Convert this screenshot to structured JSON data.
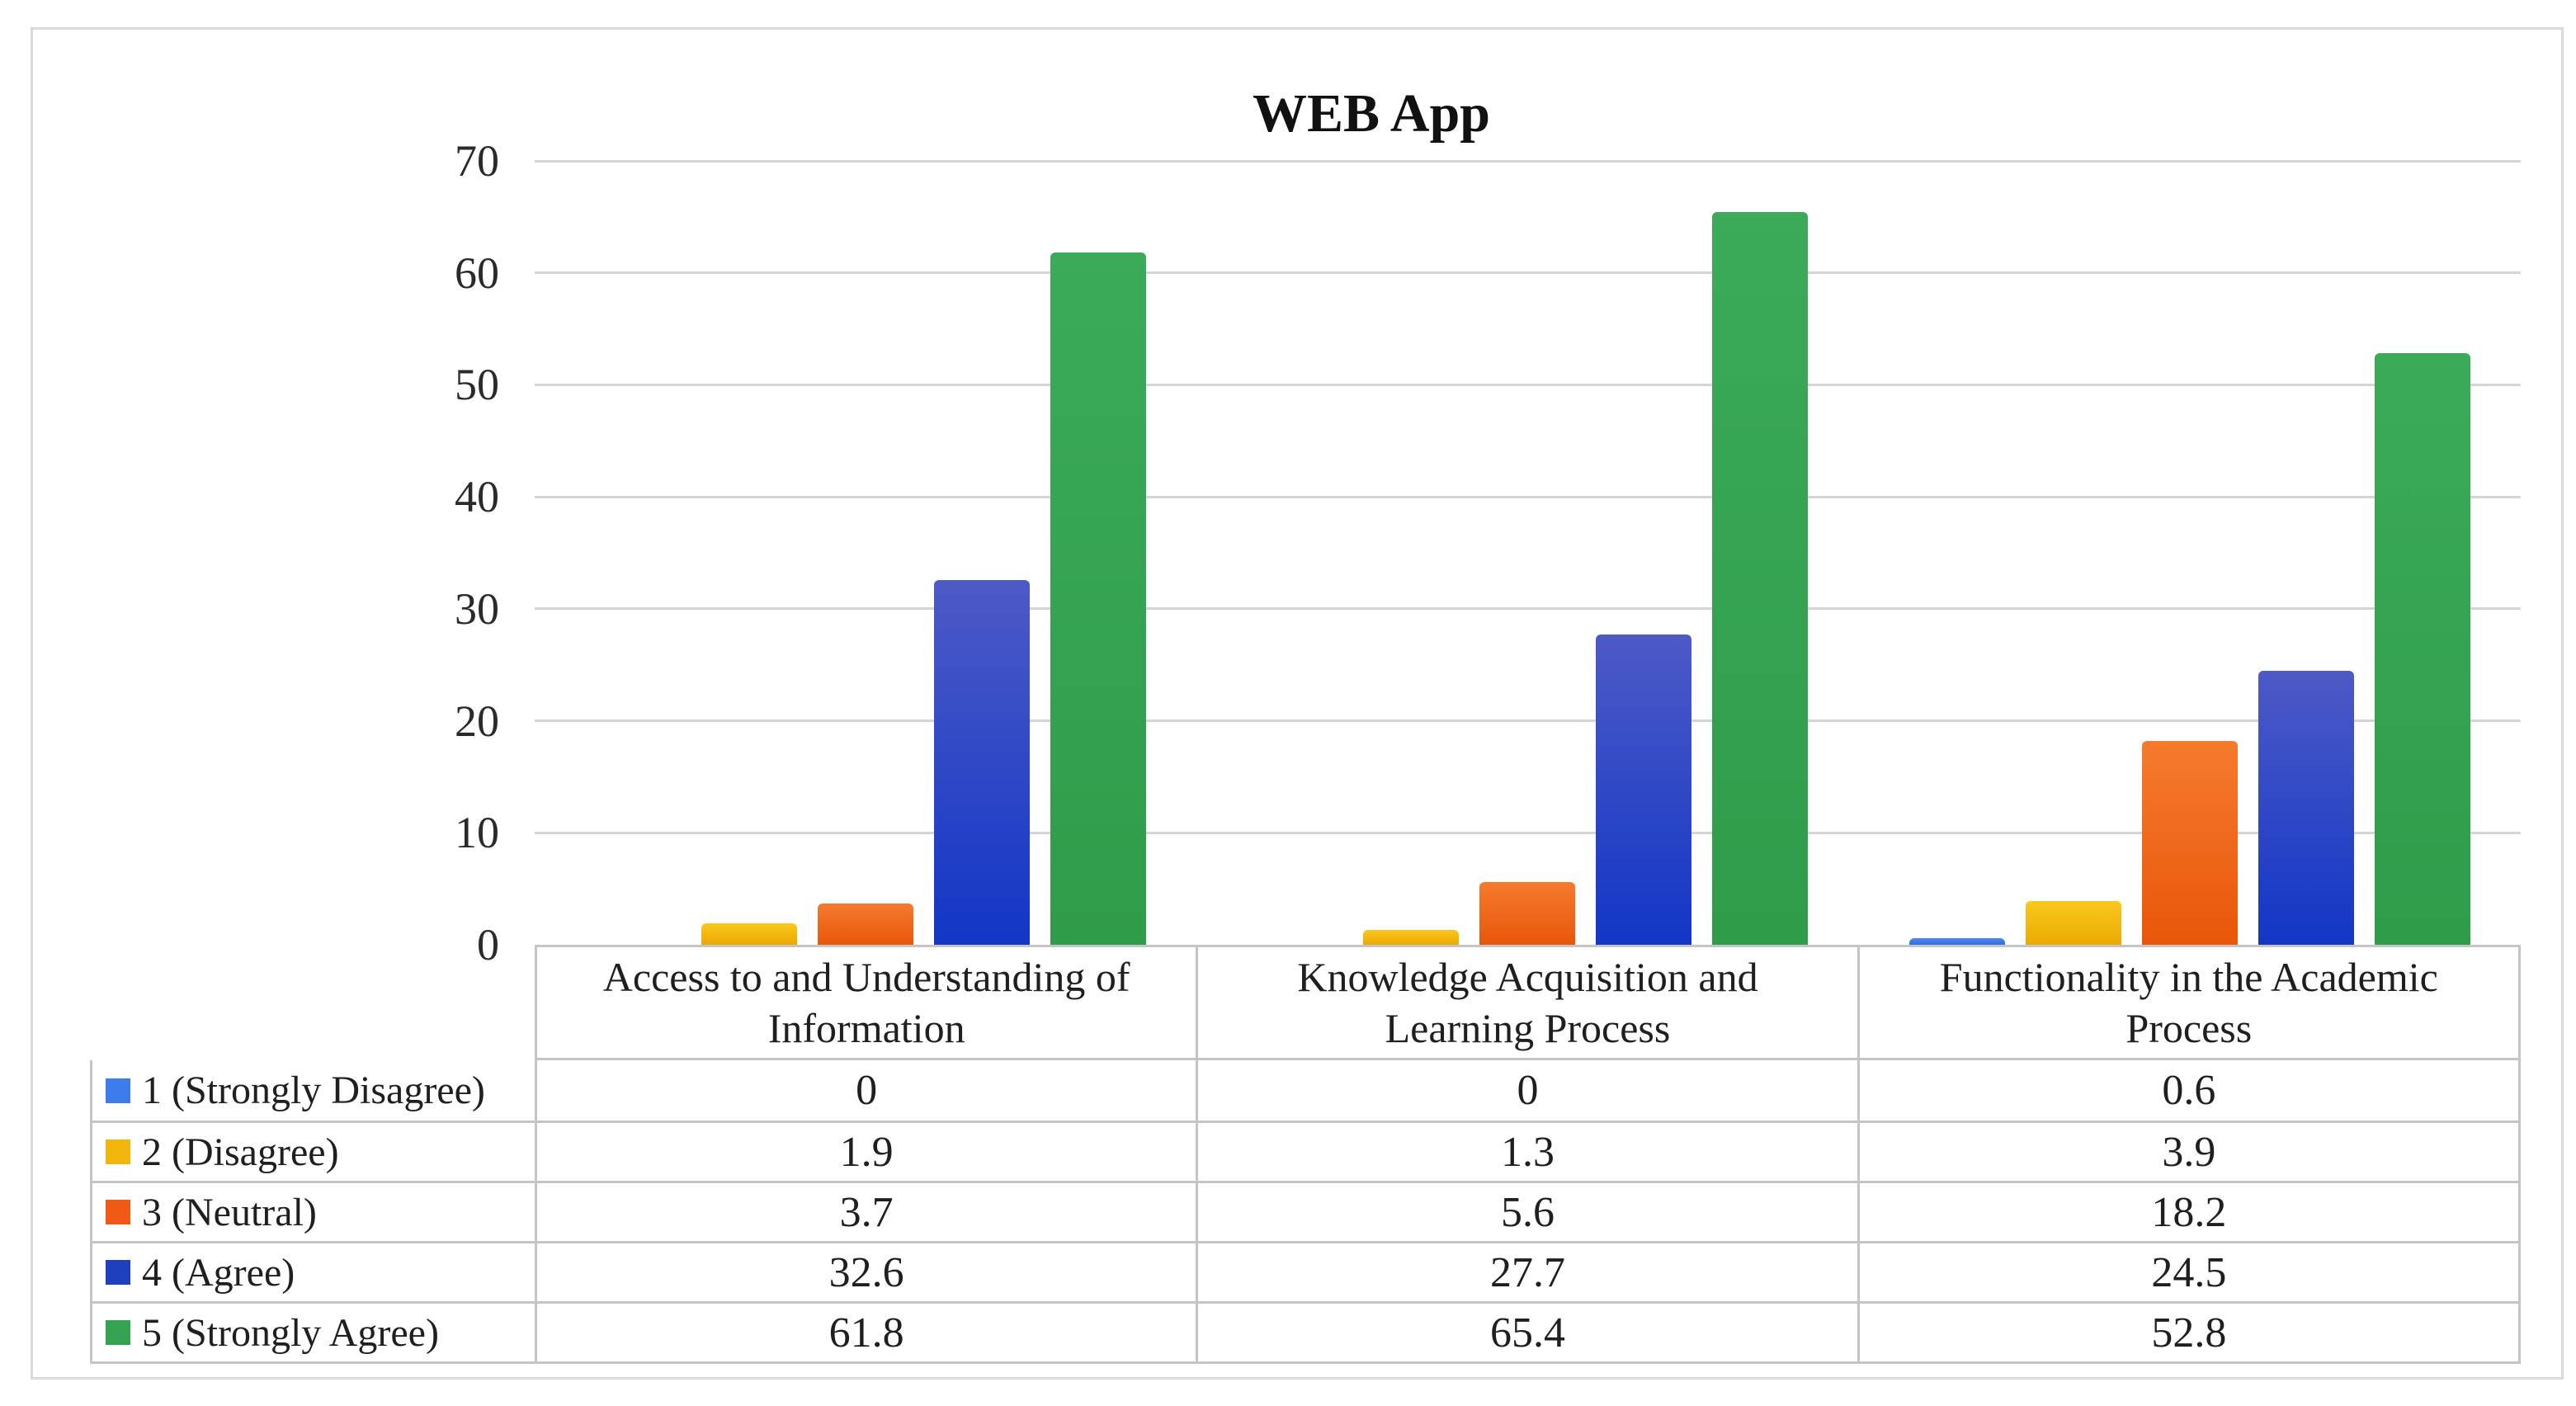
{
  "chart": {
    "title": "WEB App"
  },
  "chart_data": {
    "type": "bar",
    "title": "WEB App",
    "categories": [
      "Access to and Understanding of Information",
      "Knowledge Acquisition and Learning Process",
      "Functionality in the Academic Process"
    ],
    "series": [
      {
        "name": "1 (Strongly Disagree)",
        "color": "#3d7cec",
        "fill_top": "#4f87f0",
        "fill_bottom": "#2e6fe4",
        "values": [
          0,
          0,
          0.6
        ]
      },
      {
        "name": "2 (Disagree)",
        "color": "#f2b70a",
        "fill_top": "#f9c81e",
        "fill_bottom": "#eda900",
        "values": [
          1.9,
          1.3,
          3.9
        ]
      },
      {
        "name": "3 (Neutral)",
        "color": "#f05a14",
        "fill_top": "#f57b2e",
        "fill_bottom": "#e9560a",
        "values": [
          3.7,
          5.6,
          18.2
        ]
      },
      {
        "name": "4 (Agree)",
        "color": "#1c40be",
        "fill_top": "#4d5ac6",
        "fill_bottom": "#1236c6",
        "values": [
          32.6,
          27.7,
          24.5
        ]
      },
      {
        "name": "5 (Strongly Agree)",
        "color": "#35a351",
        "fill_top": "#3bab59",
        "fill_bottom": "#2f9c4a",
        "values": [
          61.8,
          65.4,
          52.8
        ]
      }
    ],
    "ylim": [
      0,
      70
    ],
    "yticks": [
      0,
      10,
      20,
      30,
      40,
      50,
      60,
      70
    ],
    "grid": true,
    "legend_position": "table-left-column"
  },
  "table": {
    "columns": [
      "Access to and Understanding of Information",
      "Knowledge Acquisition and Learning Process",
      "Functionality in the Academic Process"
    ],
    "rows": [
      {
        "label": "1 (Strongly Disagree)",
        "values": [
          "0",
          "0",
          "0.6"
        ]
      },
      {
        "label": "2 (Disagree)",
        "values": [
          "1.9",
          "1.3",
          "3.9"
        ]
      },
      {
        "label": "3 (Neutral)",
        "values": [
          "3.7",
          "5.6",
          "18.2"
        ]
      },
      {
        "label": "4 (Agree)",
        "values": [
          "32.6",
          "27.7",
          "24.5"
        ]
      },
      {
        "label": "5 (Strongly Agree)",
        "values": [
          "61.8",
          "65.4",
          "52.8"
        ]
      }
    ]
  }
}
